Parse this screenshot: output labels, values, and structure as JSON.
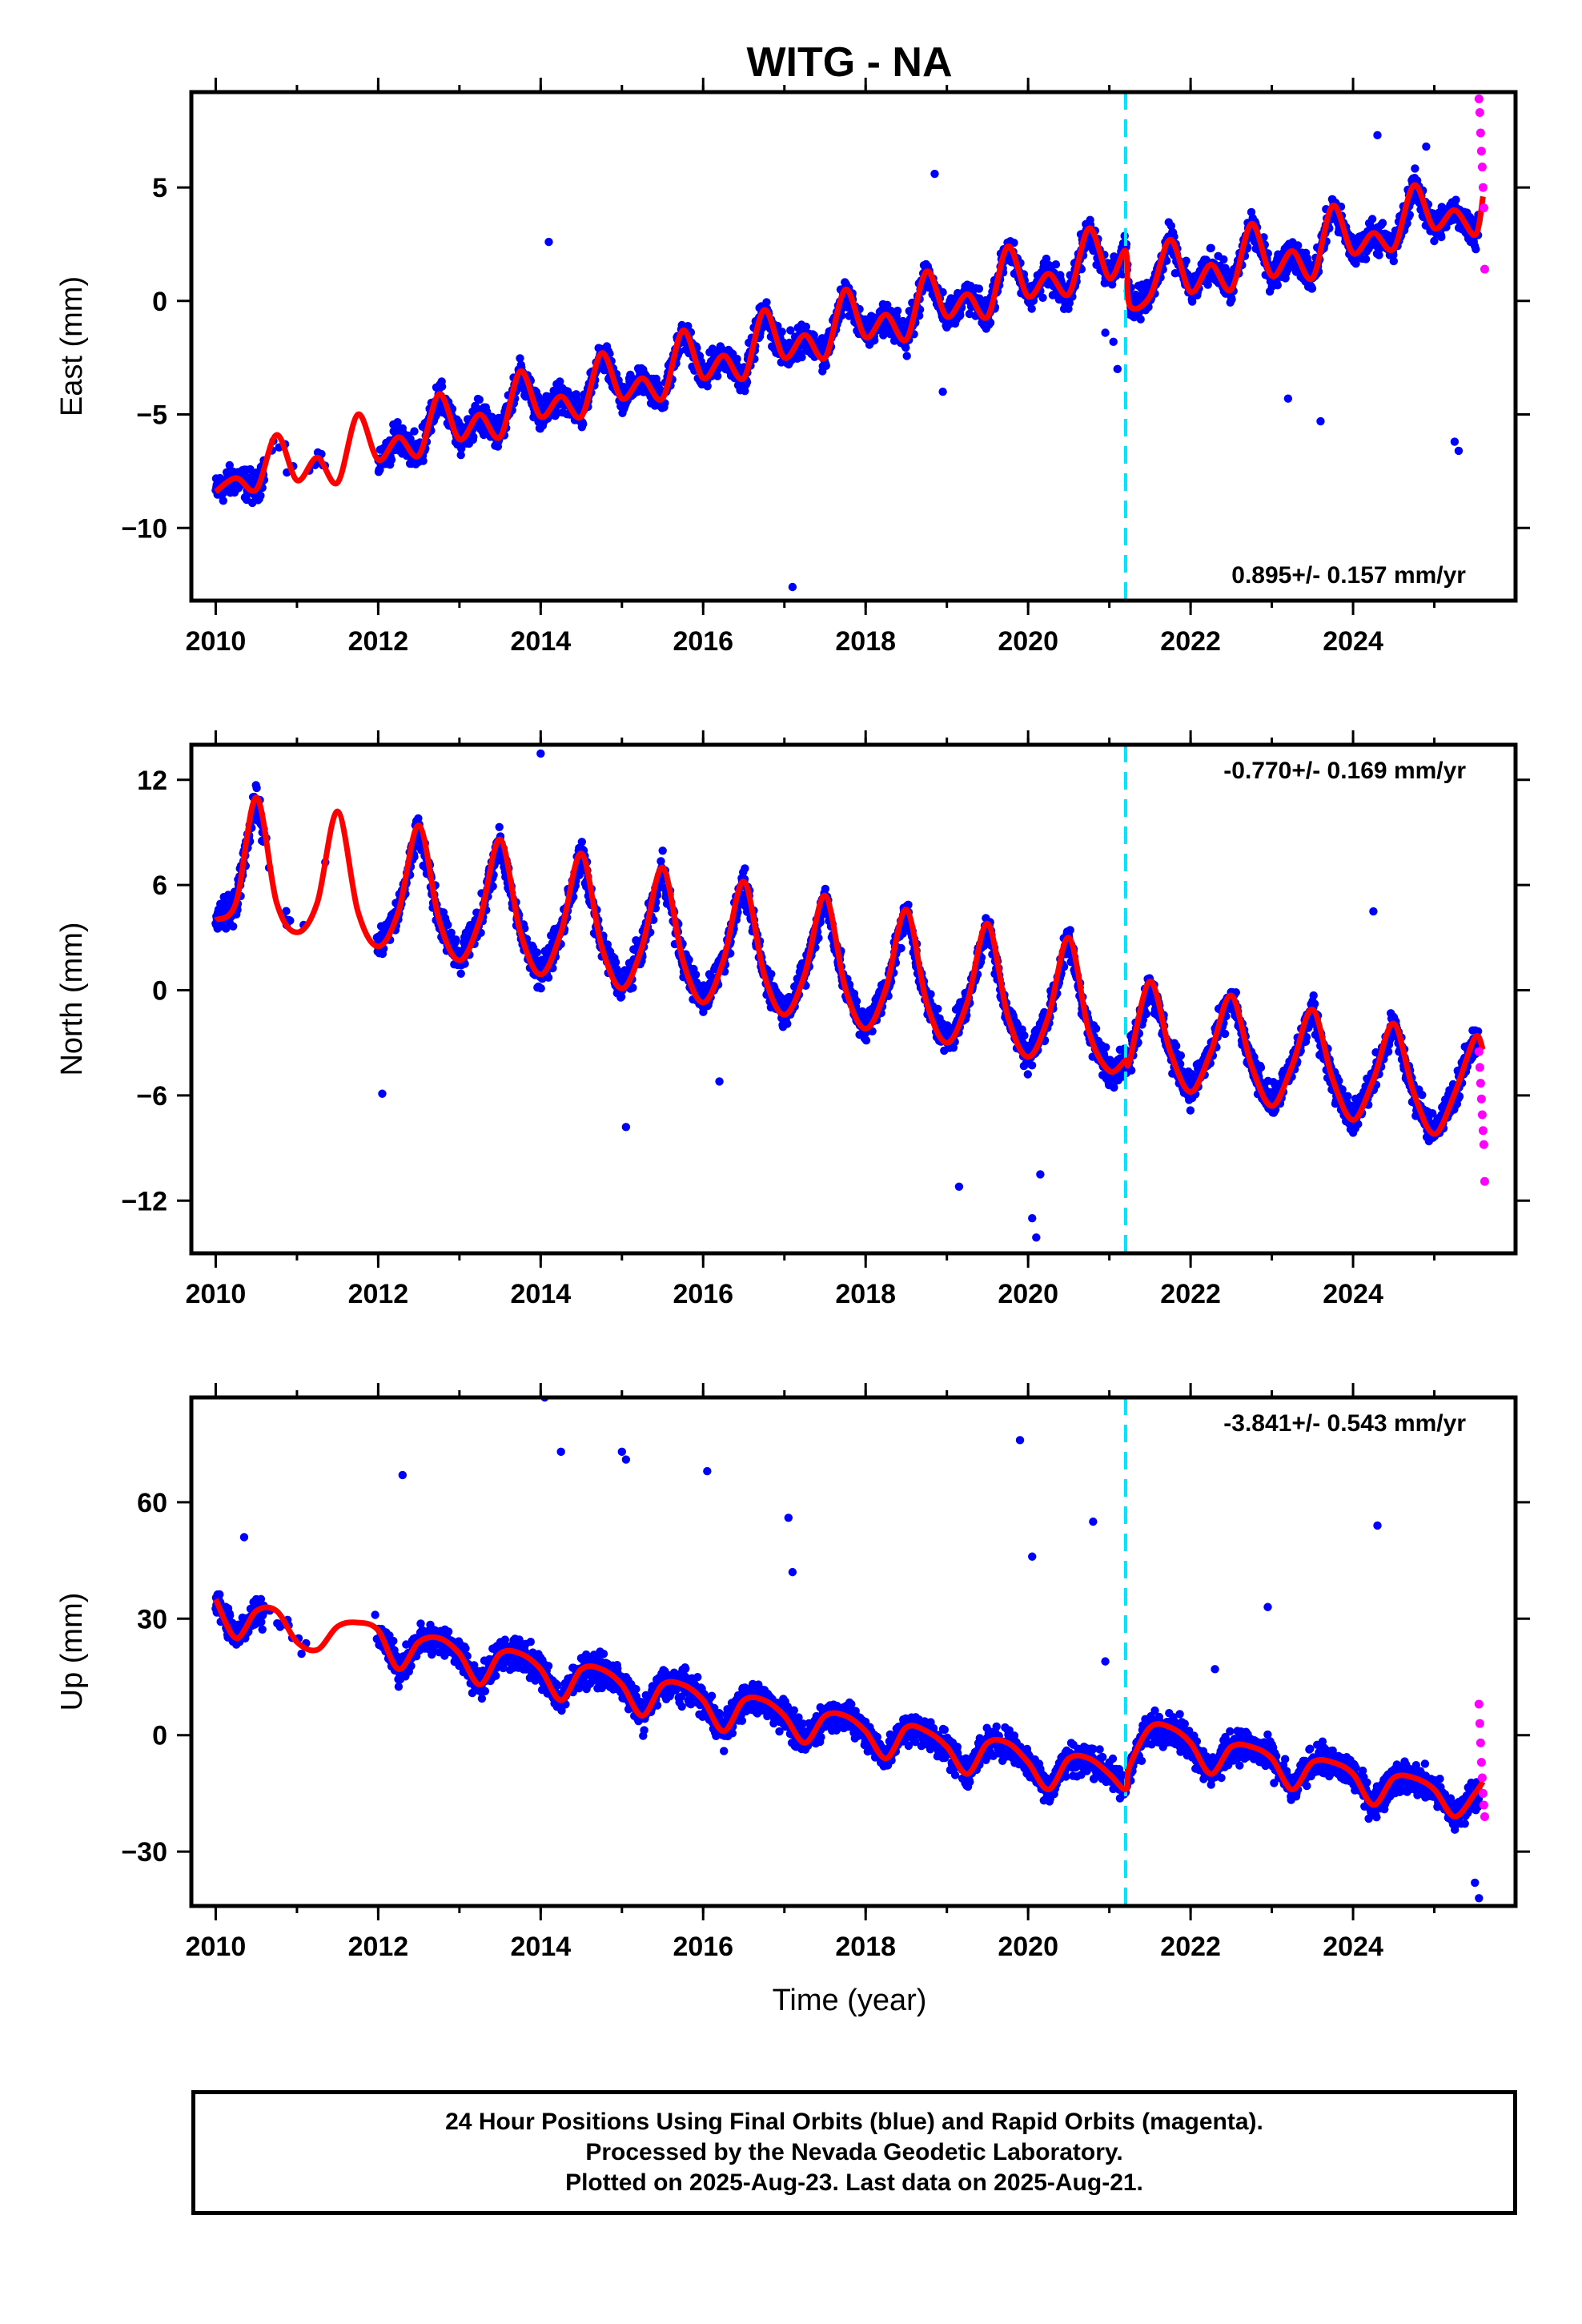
{
  "figure": {
    "title": "WITG - NA",
    "x_label": "Time (year)"
  },
  "footer": {
    "line1": "24 Hour Positions Using Final Orbits (blue) and Rapid Orbits (magenta).",
    "line2": "Processed by the Nevada Geodetic Laboratory.",
    "line3": "Plotted on 2025-Aug-23. Last data on 2025-Aug-21."
  },
  "colors": {
    "final_orbits": "#0000ff",
    "rapid_orbits": "#ff00ff",
    "model_fit": "#ff0000",
    "equipment_change": "#00e5ff"
  },
  "chart_data": [
    {
      "type": "scatter",
      "component": "east",
      "ylabel": "East (mm)",
      "xlim": [
        2009.7,
        2026.0
      ],
      "ylim": [
        -13.2,
        9.2
      ],
      "x_ticks": [
        2010,
        2012,
        2014,
        2016,
        2018,
        2020,
        2022,
        2024
      ],
      "y_ticks": [
        -10,
        -5,
        0,
        5
      ],
      "rate_label": "0.895+/- 0.157 mm/yr",
      "rate_position": "bottom-right",
      "equipment_change_year": 2021.2,
      "fit_curve": {
        "x": [
          2010.0,
          2010.25,
          2010.5,
          2010.75,
          2011.0,
          2011.25,
          2011.5,
          2011.75,
          2012.0,
          2012.25,
          2012.5,
          2012.75,
          2013.0,
          2013.25,
          2013.5,
          2013.75,
          2014.0,
          2014.25,
          2014.5,
          2014.75,
          2015.0,
          2015.25,
          2015.5,
          2015.75,
          2016.0,
          2016.25,
          2016.5,
          2016.75,
          2017.0,
          2017.25,
          2017.5,
          2017.75,
          2018.0,
          2018.25,
          2018.5,
          2018.75,
          2019.0,
          2019.25,
          2019.5,
          2019.75,
          2020.0,
          2020.25,
          2020.5,
          2020.75,
          2021.0,
          2021.2,
          2021.25,
          2021.5,
          2021.75,
          2022.0,
          2022.25,
          2022.5,
          2022.75,
          2023.0,
          2023.25,
          2023.5,
          2023.75,
          2024.0,
          2024.25,
          2024.5,
          2024.75,
          2025.0,
          2025.25,
          2025.5,
          2025.6
        ],
        "y": [
          -8.4,
          -7.8,
          -8.3,
          -5.9,
          -7.9,
          -6.9,
          -8.0,
          -5.0,
          -7.0,
          -6.0,
          -6.8,
          -4.1,
          -6.1,
          -5.0,
          -6.0,
          -3.1,
          -5.1,
          -4.2,
          -5.1,
          -2.3,
          -4.3,
          -3.4,
          -4.3,
          -1.3,
          -3.4,
          -2.4,
          -3.4,
          -0.4,
          -2.5,
          -1.5,
          -2.5,
          0.5,
          -1.6,
          -0.6,
          -1.7,
          1.3,
          -0.7,
          0.3,
          -0.7,
          2.4,
          0.2,
          1.2,
          0.3,
          3.2,
          1.0,
          2.2,
          -0.2,
          0.2,
          2.7,
          0.4,
          1.6,
          0.5,
          3.4,
          1.1,
          2.2,
          1.0,
          4.2,
          2.1,
          3.0,
          2.3,
          5.1,
          3.2,
          4.0,
          2.9,
          4.6
        ]
      },
      "rapid_points": {
        "x": [
          2025.55,
          2025.56,
          2025.57,
          2025.58,
          2025.59,
          2025.6,
          2025.61,
          2025.62
        ],
        "y": [
          8.9,
          8.3,
          7.4,
          6.6,
          5.9,
          5.0,
          4.1,
          1.4
        ]
      },
      "outliers": {
        "x": [
          2014.1,
          2017.1,
          2018.85,
          2018.95,
          2020.95,
          2021.05,
          2021.1,
          2023.2,
          2023.6,
          2024.3,
          2024.9,
          2025.25,
          2025.3
        ],
        "y": [
          2.6,
          -12.6,
          5.6,
          -4.0,
          -1.4,
          -1.8,
          -3.0,
          -4.3,
          -5.3,
          7.3,
          6.8,
          -6.2,
          -6.6
        ]
      }
    },
    {
      "type": "scatter",
      "component": "north",
      "ylabel": "North (mm)",
      "xlim": [
        2009.7,
        2026.0
      ],
      "ylim": [
        -15.0,
        14.0
      ],
      "x_ticks": [
        2010,
        2012,
        2014,
        2016,
        2018,
        2020,
        2022,
        2024
      ],
      "y_ticks": [
        -12,
        -6,
        0,
        6,
        12
      ],
      "rate_label": "-0.770+/- 0.169 mm/yr",
      "rate_position": "top-right",
      "equipment_change_year": 2021.2,
      "fit_curve": {
        "x": [
          2010.0,
          2010.25,
          2010.5,
          2010.75,
          2011.0,
          2011.25,
          2011.5,
          2011.75,
          2012.0,
          2012.25,
          2012.5,
          2012.75,
          2013.0,
          2013.25,
          2013.5,
          2013.75,
          2014.0,
          2014.25,
          2014.5,
          2014.75,
          2015.0,
          2015.25,
          2015.5,
          2015.75,
          2016.0,
          2016.25,
          2016.5,
          2016.75,
          2017.0,
          2017.25,
          2017.5,
          2017.75,
          2018.0,
          2018.25,
          2018.5,
          2018.75,
          2019.0,
          2019.25,
          2019.5,
          2019.75,
          2020.0,
          2020.25,
          2020.5,
          2020.75,
          2021.0,
          2021.2,
          2021.25,
          2021.5,
          2021.75,
          2022.0,
          2022.25,
          2022.5,
          2022.75,
          2023.0,
          2023.25,
          2023.5,
          2023.75,
          2024.0,
          2024.25,
          2024.5,
          2024.75,
          2025.0,
          2025.25,
          2025.5,
          2025.6
        ],
        "y": [
          4.0,
          5.0,
          11.0,
          5.0,
          3.3,
          5.0,
          10.2,
          4.5,
          2.5,
          4.5,
          9.4,
          4.0,
          1.7,
          4.0,
          8.6,
          3.3,
          0.9,
          3.3,
          7.8,
          2.5,
          0.1,
          2.5,
          7.0,
          1.7,
          -0.7,
          1.7,
          6.2,
          0.9,
          -1.4,
          0.9,
          5.4,
          0.1,
          -2.2,
          0.1,
          4.6,
          -0.7,
          -3.0,
          -0.7,
          3.8,
          -1.5,
          -3.8,
          -1.5,
          3.0,
          -2.4,
          -4.6,
          -4.0,
          -4.0,
          0.5,
          -3.5,
          -5.8,
          -3.5,
          -0.3,
          -4.3,
          -6.6,
          -4.3,
          -1.1,
          -5.1,
          -7.4,
          -5.1,
          -1.9,
          -5.9,
          -8.2,
          -5.9,
          -2.7,
          -3.4
        ]
      },
      "rapid_points": {
        "x": [
          2025.55,
          2025.56,
          2025.57,
          2025.58,
          2025.59,
          2025.6,
          2025.61,
          2025.62
        ],
        "y": [
          -3.5,
          -4.4,
          -5.3,
          -6.2,
          -7.1,
          -8.0,
          -8.8,
          -10.9
        ]
      },
      "outliers": {
        "x": [
          2012.05,
          2014.0,
          2015.05,
          2016.2,
          2019.15,
          2020.05,
          2020.1,
          2020.15,
          2024.25
        ],
        "y": [
          -5.9,
          13.5,
          -7.8,
          -5.2,
          -11.2,
          -13.0,
          -14.1,
          -10.5,
          4.5
        ]
      }
    },
    {
      "type": "scatter",
      "component": "up",
      "ylabel": "Up (mm)",
      "xlim": [
        2009.7,
        2026.0
      ],
      "ylim": [
        -44.0,
        87.0
      ],
      "x_ticks": [
        2010,
        2012,
        2014,
        2016,
        2018,
        2020,
        2022,
        2024
      ],
      "y_ticks": [
        -30,
        0,
        30,
        60
      ],
      "rate_label": "-3.841+/- 0.543 mm/yr",
      "rate_position": "top-right",
      "equipment_change_year": 2021.2,
      "fit_curve": {
        "x": [
          2010.0,
          2010.25,
          2010.5,
          2010.75,
          2011.0,
          2011.25,
          2011.5,
          2011.75,
          2012.0,
          2012.25,
          2012.5,
          2012.75,
          2013.0,
          2013.25,
          2013.5,
          2013.75,
          2014.0,
          2014.25,
          2014.5,
          2014.75,
          2015.0,
          2015.25,
          2015.5,
          2015.75,
          2016.0,
          2016.25,
          2016.5,
          2016.75,
          2017.0,
          2017.25,
          2017.5,
          2017.75,
          2018.0,
          2018.25,
          2018.5,
          2018.75,
          2019.0,
          2019.25,
          2019.5,
          2019.75,
          2020.0,
          2020.25,
          2020.5,
          2020.75,
          2021.0,
          2021.2,
          2021.25,
          2021.5,
          2021.75,
          2022.0,
          2022.25,
          2022.5,
          2022.75,
          2023.0,
          2023.25,
          2023.5,
          2023.75,
          2024.0,
          2024.25,
          2024.5,
          2024.75,
          2025.0,
          2025.25,
          2025.5,
          2025.6
        ],
        "y": [
          35.0,
          25.0,
          32.0,
          32.0,
          24.0,
          22.0,
          28.0,
          29.0,
          27.0,
          17.0,
          24.0,
          25.0,
          21.0,
          13.0,
          21.0,
          21.0,
          17.0,
          9.0,
          17.0,
          17.0,
          13.0,
          5.0,
          13.0,
          13.0,
          9.0,
          1.0,
          9.0,
          9.0,
          5.0,
          -2.0,
          5.0,
          5.0,
          1.0,
          -6.0,
          2.0,
          1.0,
          -3.0,
          -10.0,
          -2.0,
          -2.0,
          -7.0,
          -14.0,
          -6.0,
          -6.0,
          -10.0,
          -14.0,
          -8.0,
          2.0,
          2.0,
          -2.0,
          -10.0,
          -3.0,
          -3.0,
          -6.0,
          -14.0,
          -7.0,
          -7.0,
          -10.0,
          -18.0,
          -11.0,
          -11.0,
          -14.0,
          -21.0,
          -15.0,
          -12.0
        ]
      },
      "rapid_points": {
        "x": [
          2025.55,
          2025.56,
          2025.57,
          2025.58,
          2025.59,
          2025.6,
          2025.61,
          2025.62
        ],
        "y": [
          8.0,
          3.0,
          -2.0,
          -7.0,
          -11.0,
          -15.0,
          -18.0,
          -21.0
        ]
      },
      "outliers": {
        "x": [
          2010.35,
          2012.3,
          2014.05,
          2014.25,
          2015.0,
          2015.05,
          2016.05,
          2017.05,
          2017.1,
          2019.9,
          2020.05,
          2020.8,
          2020.95,
          2022.3,
          2022.95,
          2024.3,
          2025.5,
          2025.55
        ],
        "y": [
          51.0,
          67.0,
          87.0,
          73.0,
          73.0,
          71.0,
          68.0,
          56.0,
          42.0,
          76.0,
          46.0,
          55.0,
          19.0,
          17.0,
          33.0,
          54.0,
          -38.0,
          -42.0
        ]
      }
    }
  ]
}
